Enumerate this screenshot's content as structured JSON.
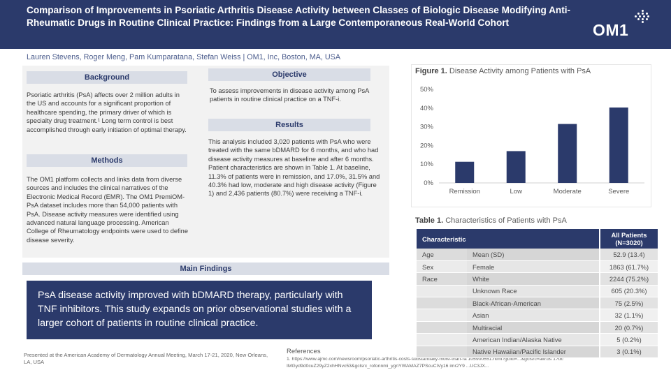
{
  "header": {
    "title": "Comparison of Improvements in Psoriatic Arthritis Disease Activity between Classes of Biologic Disease Modifying Anti-Rheumatic Drugs in Routine Clinical Practice: Findings from a Large Contemporaneous Real-World Cohort",
    "logo": "OM1"
  },
  "authors": "Lauren Stevens, Roger Meng, Pam Kumparatana, Stefan Weiss  |  OM1, Inc, Boston, MA, USA",
  "background": {
    "heading": "Background",
    "text": "Psoriatic arthritis (PsA) affects over 2 million adults in the US and accounts for a significant proportion of healthcare spending, the primary driver of which is specialty drug treatment.¹ Long term control is best accomplished through early initiation of optimal therapy."
  },
  "methods": {
    "heading": "Methods",
    "text": "The OM1 platform collects and links data from diverse sources and includes the clinical narratives of the Electronic Medical Record (EMR). The OM1 PremiOM-PsA dataset includes more than 54,000 patients with PsA. Disease activity measures were identified using advanced natural language processing. American College of Rheumatology endpoints were used to define disease severity."
  },
  "objective": {
    "heading": "Objective",
    "text": "To assess improvements in disease activity among PsA patients in routine clinical practice on a TNF-i."
  },
  "results": {
    "heading": "Results",
    "text": "This analysis included 3,020 patients with PsA who were treated with the same bDMARD for 6 months, and who had disease activity measures at baseline and after 6 months. Patient characteristics are shown in Table 1. At baseline, 11.3% of patients were in remission, and 17.0%, 31.5% and 40.3% had low, moderate and high disease activity (Figure 1) and 2,436 patients (80.7%)  were receiving a TNF-i."
  },
  "main_findings": {
    "heading": "Main Findings",
    "text": "PsA disease activity improved with bDMARD therapy, particularly with TNF inhibitors. This study expands on prior observational studies with a larger cohort of patients in routine clinical practice."
  },
  "footer": {
    "presented": "Presented at the American Academy of Dermatology Annual Meeting, March 17-21, 2020, New Orleans, LA, USA",
    "references_title": "References",
    "references_text": "1. https://www.ajmc.com/newsroom/psoriatic-arthritis-costs-substantially-more-than-ra 105900551.html?gclid=...&gclsrc=aw.ds 1?dc IMGyd9d0cuZ29yZ2xhHNvc53&gclsrc_rofonnmi_ygnYWAMAZ7PScuCiVy16 imr2Y9 ...UC3JX..."
  },
  "figure": {
    "caption_bold": "Figure 1.",
    "caption_rest": " Disease Activity among Patients with PsA"
  },
  "chart_data": {
    "type": "bar",
    "categories": [
      "Remission",
      "Low",
      "Moderate",
      "Severe"
    ],
    "values": [
      11.3,
      17.0,
      31.5,
      40.3
    ],
    "ylim": [
      0,
      50
    ],
    "yticks": [
      "0%",
      "10%",
      "20%",
      "30%",
      "40%",
      "50%"
    ],
    "bar_color": "#2b3a6b",
    "grid": false
  },
  "table": {
    "caption_bold": "Table 1.",
    "caption_rest": " Characteristics of Patients with PsA",
    "headers": [
      "Characteristic",
      "All Patients",
      "(N=3020)"
    ],
    "rows": [
      [
        "Age",
        "Mean (SD)",
        "52.9 (13.4)"
      ],
      [
        "Sex",
        "Female",
        "1863 (61.7%)"
      ],
      [
        "Race",
        "White",
        "2244 (75.2%)"
      ],
      [
        "",
        "Unknown Race",
        "605 (20.3%)"
      ],
      [
        "",
        "Black-African-American",
        "75 (2.5%)"
      ],
      [
        "",
        "Asian",
        "32 (1.1%)"
      ],
      [
        "",
        "Multiracial",
        "20 (0.7%)"
      ],
      [
        "",
        "American Indian/Alaska Native",
        "5 (0.2%)"
      ],
      [
        "",
        "Native Hawaiian/Pacific Islander",
        "3 (0.1%)"
      ]
    ]
  },
  "colors": {
    "header_bg": "#2b3a6b",
    "section_head_bg": "#d9dde6",
    "panel_bg": "#f2f2f2"
  }
}
